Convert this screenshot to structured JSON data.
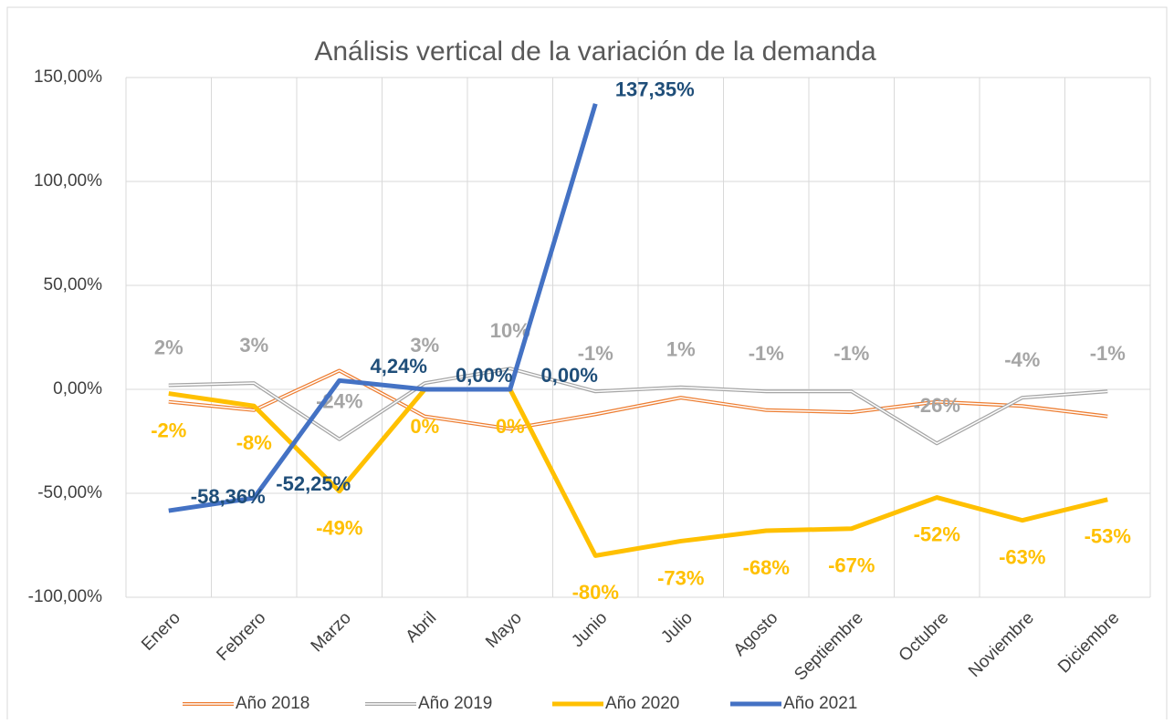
{
  "chart_data": {
    "type": "line",
    "title": "Análisis vertical de la variación de la demanda",
    "categories": [
      "Enero",
      "Febrero",
      "Marzo",
      "Abril",
      "Mayo",
      "Junio",
      "Julio",
      "Agosto",
      "Septiembre",
      "Octubre",
      "Noviembre",
      "Diciembre"
    ],
    "ylim": [
      -100,
      150
    ],
    "yticks": [
      {
        "value": -100,
        "label": "-100,00%"
      },
      {
        "value": -50,
        "label": "-50,00%"
      },
      {
        "value": 0,
        "label": "0,00%"
      },
      {
        "value": 50,
        "label": "50,00%"
      },
      {
        "value": 100,
        "label": "100,00%"
      },
      {
        "value": 150,
        "label": "150,00%"
      }
    ],
    "grid": true,
    "legend": "bottom",
    "series": [
      {
        "name": "Año 2018",
        "color": "#ed7d31",
        "style": "double",
        "values": [
          -6,
          -10,
          9,
          -13,
          -19,
          -12,
          -4,
          -10,
          -11,
          -6,
          -8,
          -13
        ]
      },
      {
        "name": "Año 2019",
        "color": "#a5a5a5",
        "style": "double",
        "values": [
          2,
          3,
          -24,
          3,
          10,
          -1,
          1,
          -1,
          -1,
          -26,
          -4,
          -1
        ],
        "value_labels": [
          "2%",
          "3%",
          "-24%",
          "3%",
          "10%",
          "-1%",
          "1%",
          "-1%",
          "-1%",
          "-26%",
          "-4%",
          "-1%"
        ]
      },
      {
        "name": "Año 2020",
        "color": "#ffc000",
        "style": "solid",
        "values": [
          -2,
          -8,
          -49,
          0,
          0,
          -80,
          -73,
          -68,
          -67,
          -52,
          -63,
          -53
        ],
        "value_labels": [
          "-2%",
          "-8%",
          "-49%",
          "0%",
          "0%",
          "-80%",
          "-73%",
          "-68%",
          "-67%",
          "-52%",
          "-63%",
          "-53%"
        ]
      },
      {
        "name": "Año 2021",
        "color": "#4472c4",
        "style": "solid",
        "values": [
          -58.36,
          -52.25,
          4.24,
          0,
          0,
          137.35,
          null,
          null,
          null,
          null,
          null,
          null
        ],
        "value_labels": [
          "-58,36%",
          "-52,25%",
          "4,24%",
          "0,00%",
          "0,00%",
          "137,35%",
          null,
          null,
          null,
          null,
          null,
          null
        ]
      }
    ]
  }
}
